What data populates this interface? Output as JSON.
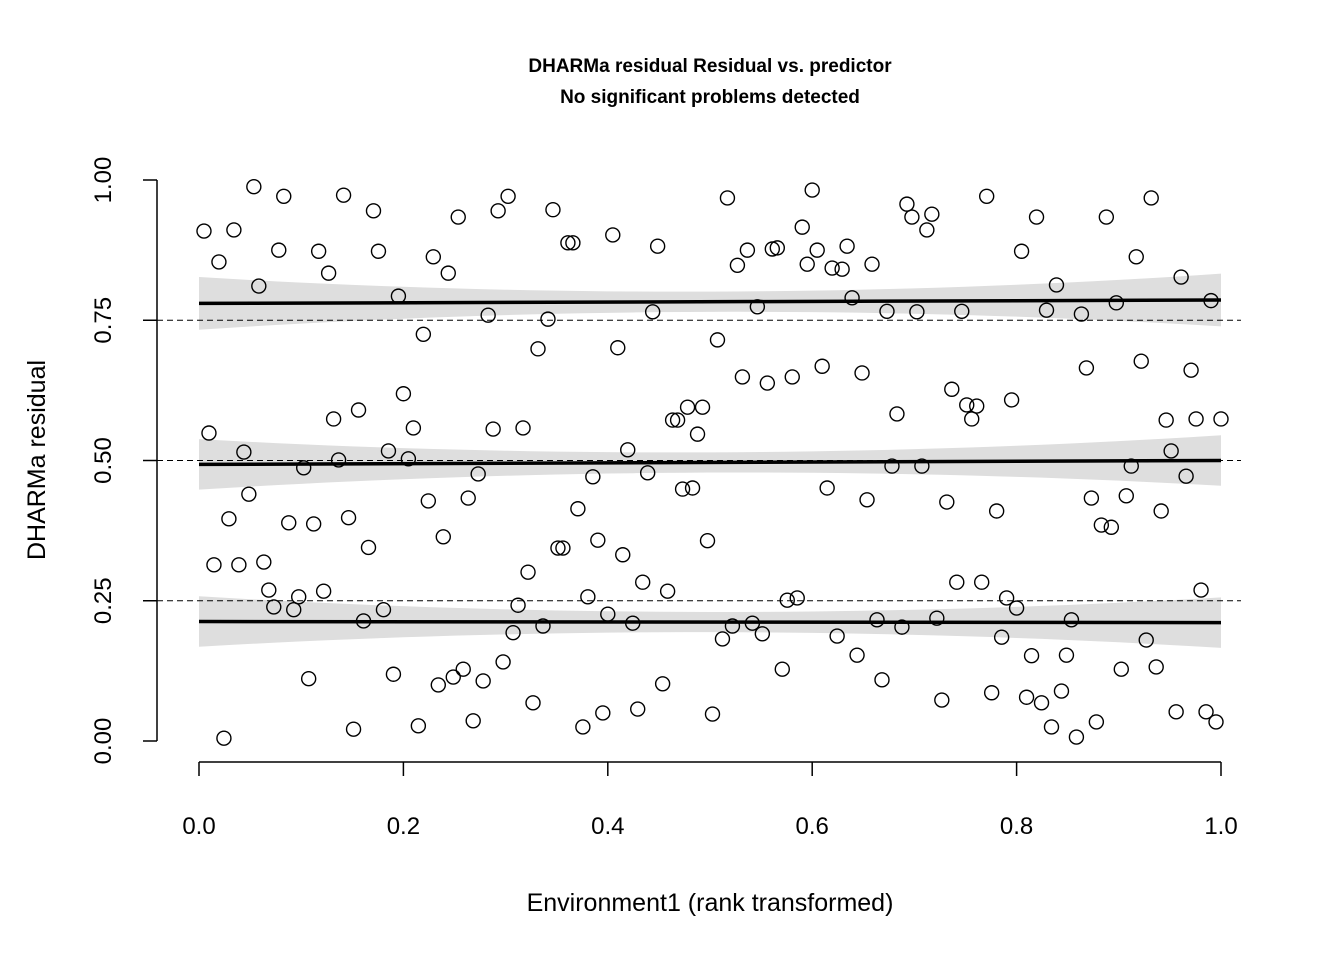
{
  "chart_data": {
    "type": "scatter",
    "title": "DHARMa residual Residual vs. predictor",
    "subtitle": "No significant problems detected",
    "xlabel": "Environment1 (rank transformed)",
    "ylabel": "DHARMa residual",
    "xlim": [
      0,
      1
    ],
    "ylim": [
      0,
      1
    ],
    "x_ticks": [
      "0.0",
      "0.2",
      "0.4",
      "0.6",
      "0.8",
      "1.0"
    ],
    "y_ticks": [
      "0.00",
      "0.25",
      "0.50",
      "0.75",
      "1.00"
    ],
    "reference_lines": [
      0.25,
      0.5,
      0.75
    ],
    "x_is_rank": true,
    "points_y": [
      0.909,
      0.549,
      0.314,
      0.854,
      0.005,
      0.396,
      0.911,
      0.314,
      0.515,
      0.44,
      0.988,
      0.811,
      0.319,
      0.269,
      0.239,
      0.875,
      0.971,
      0.389,
      0.234,
      0.257,
      0.487,
      0.111,
      0.387,
      0.873,
      0.267,
      0.834,
      0.574,
      0.501,
      0.973,
      0.398,
      0.021,
      0.59,
      0.214,
      0.345,
      0.945,
      0.873,
      0.234,
      0.517,
      0.119,
      0.793,
      0.619,
      0.503,
      0.558,
      0.027,
      0.725,
      0.428,
      0.863,
      0.1,
      0.364,
      0.834,
      0.114,
      0.934,
      0.128,
      0.433,
      0.036,
      0.476,
      0.107,
      0.759,
      0.556,
      0.945,
      0.141,
      0.971,
      0.193,
      0.242,
      0.558,
      0.301,
      0.068,
      0.699,
      0.205,
      0.752,
      0.947,
      0.344,
      0.344,
      0.888,
      0.888,
      0.414,
      0.025,
      0.257,
      0.471,
      0.358,
      0.05,
      0.226,
      0.902,
      0.701,
      0.332,
      0.519,
      0.21,
      0.057,
      0.283,
      0.478,
      0.765,
      0.882,
      0.102,
      0.267,
      0.572,
      0.572,
      0.449,
      0.595,
      0.451,
      0.547,
      0.595,
      0.357,
      0.048,
      0.715,
      0.182,
      0.968,
      0.205,
      0.848,
      0.649,
      0.875,
      0.21,
      0.774,
      0.191,
      0.638,
      0.877,
      0.879,
      0.128,
      0.251,
      0.649,
      0.255,
      0.916,
      0.85,
      0.982,
      0.875,
      0.668,
      0.451,
      0.843,
      0.187,
      0.841,
      0.882,
      0.79,
      0.153,
      0.656,
      0.43,
      0.85,
      0.216,
      0.109,
      0.766,
      0.49,
      0.583,
      0.203,
      0.957,
      0.934,
      0.765,
      0.49,
      0.911,
      0.939,
      0.219,
      0.073,
      0.426,
      0.627,
      0.283,
      0.766,
      0.599,
      0.574,
      0.597,
      0.283,
      0.971,
      0.086,
      0.41,
      0.185,
      0.255,
      0.608,
      0.237,
      0.873,
      0.078,
      0.152,
      0.934,
      0.068,
      0.768,
      0.025,
      0.813,
      0.089,
      0.153,
      0.216,
      0.007,
      0.761,
      0.665,
      0.433,
      0.034,
      0.385,
      0.934,
      0.381,
      0.781,
      0.128,
      0.437,
      0.49,
      0.863,
      0.677,
      0.18,
      0.968,
      0.132,
      0.41,
      0.572,
      0.517,
      0.052,
      0.827,
      0.472,
      0.661,
      0.574,
      0.269,
      0.052,
      0.785,
      0.034,
      0.574
    ],
    "quantile_fits": [
      {
        "quantile": 0.25,
        "y_start": 0.213,
        "y_end": 0.211,
        "band_halfwidth_ends": 0.045,
        "band_halfwidth_mid": 0.018
      },
      {
        "quantile": 0.5,
        "y_start": 0.493,
        "y_end": 0.5,
        "band_halfwidth_ends": 0.045,
        "band_halfwidth_mid": 0.018
      },
      {
        "quantile": 0.75,
        "y_start": 0.78,
        "y_end": 0.786,
        "band_halfwidth_ends": 0.047,
        "band_halfwidth_mid": 0.018
      }
    ],
    "colors": {
      "points": "#000000",
      "band": "#dedede",
      "line": "#000000"
    }
  }
}
